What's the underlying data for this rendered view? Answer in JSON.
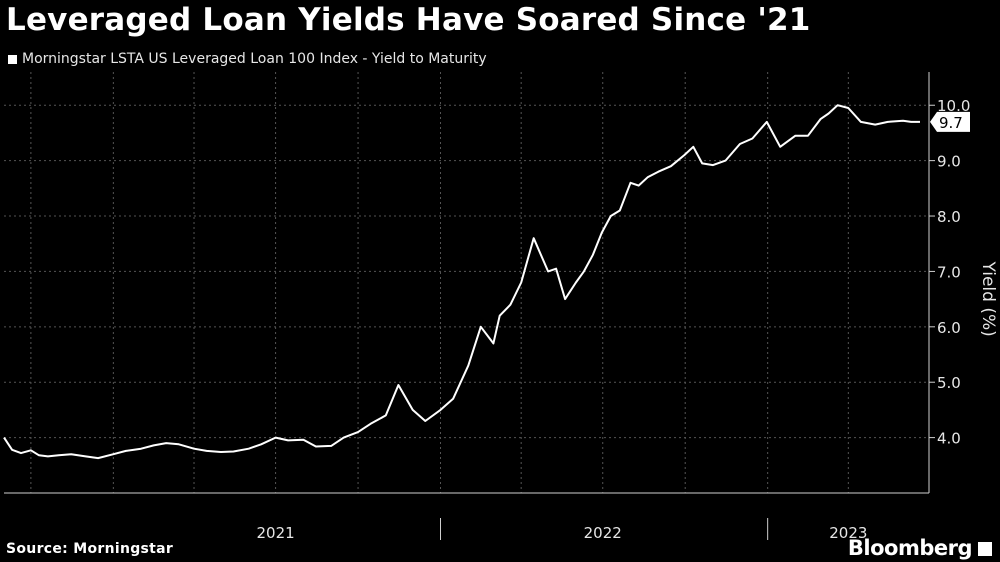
{
  "title": "Leveraged Loan Yields Have Soared Since '21",
  "legend_label": "Morningstar LSTA US Leveraged Loan 100 Index - Yield to Maturity",
  "source": "Source: Morningstar",
  "brand": "Bloomberg",
  "chart_data": {
    "type": "line",
    "title": "Leveraged Loan Yields Have Soared Since '21",
    "xlabel": "",
    "ylabel": "Yield (%)",
    "y_axis_position": "right",
    "ylim": [
      3.0,
      10.6
    ],
    "yticks": [
      4.0,
      5.0,
      6.0,
      7.0,
      8.0,
      9.0,
      10.0
    ],
    "ytick_labels": [
      "4.0",
      "5.0",
      "6.0",
      "7.0",
      "8.0",
      "9.0",
      "10.0"
    ],
    "xlim": [
      "2020-09-01",
      "2023-06-30"
    ],
    "xtick_labels": [
      {
        "label": "2021",
        "date": "2021-07-01"
      },
      {
        "label": "2022",
        "date": "2022-07-01"
      },
      {
        "label": "2023",
        "date": "2023-04-01"
      }
    ],
    "year_dividers": [
      "2022-01-01",
      "2023-01-01"
    ],
    "grid": true,
    "last_value_label": "9.7",
    "series": [
      {
        "name": "Morningstar LSTA US Leveraged Loan 100 Index - Yield to Maturity",
        "x": [
          "2020-09-01",
          "2020-09-10",
          "2020-09-20",
          "2020-10-01",
          "2020-10-10",
          "2020-10-20",
          "2020-11-01",
          "2020-11-15",
          "2020-12-01",
          "2020-12-15",
          "2021-01-01",
          "2021-01-15",
          "2021-02-01",
          "2021-02-15",
          "2021-03-01",
          "2021-03-15",
          "2021-04-01",
          "2021-04-15",
          "2021-05-01",
          "2021-05-15",
          "2021-06-01",
          "2021-06-15",
          "2021-07-01",
          "2021-07-15",
          "2021-08-01",
          "2021-08-15",
          "2021-09-01",
          "2021-09-15",
          "2021-10-01",
          "2021-10-15",
          "2021-11-01",
          "2021-11-15",
          "2021-12-01",
          "2021-12-15",
          "2022-01-01",
          "2022-01-15",
          "2022-02-01",
          "2022-02-15",
          "2022-03-01",
          "2022-03-08",
          "2022-03-20",
          "2022-04-01",
          "2022-04-15",
          "2022-05-01",
          "2022-05-10",
          "2022-05-20",
          "2022-06-01",
          "2022-06-10",
          "2022-06-20",
          "2022-06-30",
          "2022-07-10",
          "2022-07-20",
          "2022-08-01",
          "2022-08-10",
          "2022-08-20",
          "2022-09-01",
          "2022-09-15",
          "2022-09-30",
          "2022-10-10",
          "2022-10-20",
          "2022-11-01",
          "2022-11-15",
          "2022-12-01",
          "2022-12-15",
          "2022-12-31",
          "2023-01-15",
          "2023-02-01",
          "2023-02-15",
          "2023-03-01",
          "2023-03-10",
          "2023-03-20",
          "2023-04-01",
          "2023-04-15",
          "2023-05-01",
          "2023-05-15",
          "2023-06-01",
          "2023-06-10",
          "2023-06-20"
        ],
        "values": [
          4.0,
          3.78,
          3.72,
          3.77,
          3.68,
          3.66,
          3.68,
          3.7,
          3.66,
          3.63,
          3.7,
          3.76,
          3.8,
          3.86,
          3.9,
          3.88,
          3.8,
          3.76,
          3.74,
          3.75,
          3.8,
          3.88,
          4.0,
          3.95,
          3.96,
          3.84,
          3.85,
          4.0,
          4.1,
          4.25,
          4.4,
          4.95,
          4.5,
          4.3,
          4.5,
          4.7,
          5.3,
          6.0,
          5.7,
          6.2,
          6.4,
          6.8,
          7.6,
          7.0,
          7.05,
          6.5,
          6.8,
          7.0,
          7.3,
          7.7,
          8.0,
          8.1,
          8.6,
          8.55,
          8.7,
          8.8,
          8.9,
          9.1,
          9.25,
          8.95,
          8.92,
          9.0,
          9.3,
          9.4,
          9.7,
          9.25,
          9.45,
          9.45,
          9.75,
          9.85,
          10.0,
          9.95,
          9.7,
          9.65,
          9.7,
          9.72,
          9.7,
          9.7
        ]
      }
    ]
  }
}
